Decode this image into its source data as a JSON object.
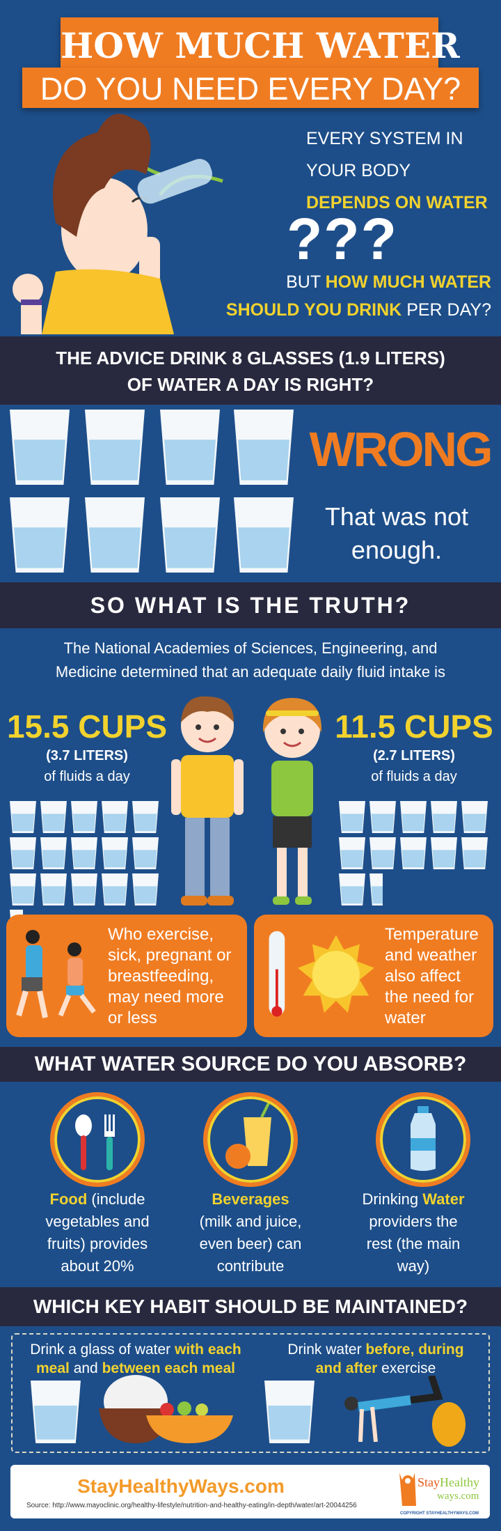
{
  "colors": {
    "background": "#1d4e89",
    "band": "#28283e",
    "accent_orange": "#f07c22",
    "highlight_yellow": "#f2d22e",
    "water": "#a9d3ee"
  },
  "title": {
    "line1": "HOW MUCH WATER",
    "line2": "DO YOU NEED EVERY DAY?"
  },
  "intro": {
    "line1": "EVERY SYSTEM IN",
    "line2": "YOUR BODY",
    "line3": "DEPENDS ON WATER",
    "question_marks": "???",
    "q1_a": "BUT ",
    "q1_b": "HOW MUCH WATER",
    "q2_a": "SHOULD YOU DRINK",
    "q2_b": " PER DAY?"
  },
  "advice": {
    "line1": "THE ADVICE DRINK 8 GLASSES (1.9 LITERS)",
    "line2": "OF WATER A DAY IS RIGHT?",
    "glasses": 8,
    "verdict": "WRONG",
    "note1": "That was not",
    "note2": "enough."
  },
  "truth": {
    "heading": "SO WHAT IS THE TRUTH?",
    "para1": "The National Academies of Sciences, Engineering, and",
    "para2": "Medicine determined that an adequate daily fluid intake is",
    "men": {
      "cups": "15.5 CUPS",
      "liters": "(3.7 LITERS)",
      "desc": "of fluids a day",
      "glass_count": 15.5
    },
    "women": {
      "cups": "11.5 CUPS",
      "liters": "(2.7 LITERS)",
      "desc": "of fluids a day",
      "glass_count": 11.5
    }
  },
  "factors": [
    {
      "icon": "runners-icon",
      "lines": [
        "Who exercise,",
        "sick, pregnant or",
        "breastfeeding,",
        "may need more",
        "or less"
      ]
    },
    {
      "icon": "thermometer-sun-icon",
      "lines": [
        "Temperature",
        "and weather",
        "also affect",
        "the need for",
        "water"
      ]
    }
  ],
  "sources": {
    "heading": "WHAT WATER SOURCE DO YOU ABSORB?",
    "items": [
      {
        "icon": "utensils-icon",
        "hl": "Food",
        "rest": " (include",
        "lines": [
          "vegetables and",
          "fruits) provides",
          "about 20%"
        ]
      },
      {
        "icon": "juice-icon",
        "hl": "Beverages",
        "rest": "",
        "lines": [
          "(milk and juice,",
          "even beer) can",
          "contribute"
        ]
      },
      {
        "icon": "water-bottle-icon",
        "pre": "Drinking ",
        "hl": "Water",
        "lines": [
          "providers the",
          "rest (the main",
          "way)"
        ]
      }
    ]
  },
  "habits": {
    "heading": "WHICH KEY HABIT SHOULD BE MAINTAINED?",
    "meal": {
      "a": "Drink a glass of water ",
      "b": "with each",
      "c": "meal",
      "d": " and ",
      "e": "between each meal"
    },
    "exercise": {
      "a": "Drink water ",
      "b": "before, during",
      "c": "and after",
      "d": " exercise"
    }
  },
  "footer": {
    "site": "StayHealthyWays.com",
    "source": "Source: http://www.mayoclinic.org/healthy-lifestyle/nutrition-and-healthy-eating/in-depth/water/art-20044256",
    "logo": "StayHealthy ways.com",
    "copyright": "COPYRIGHT STAYHEALTHYWAYS.COM"
  }
}
